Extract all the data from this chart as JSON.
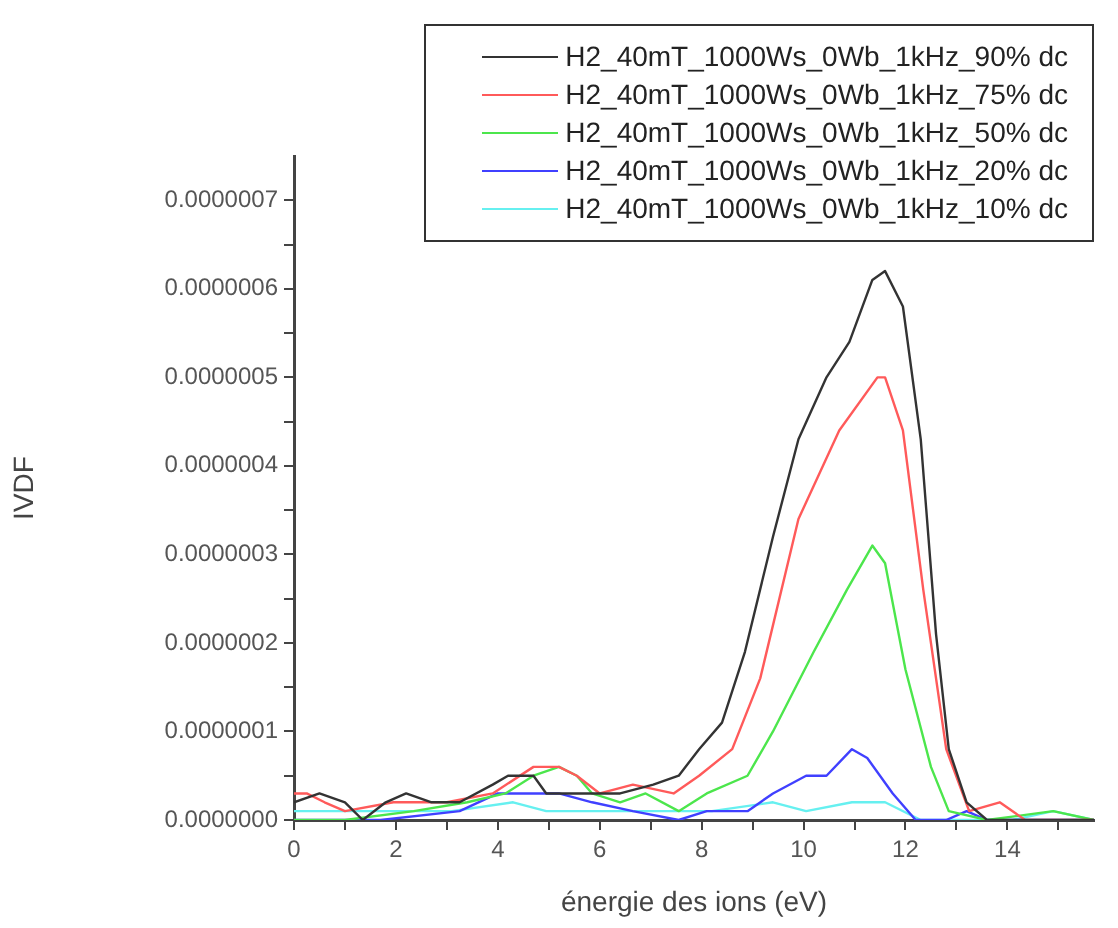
{
  "chart_data": {
    "type": "line",
    "xlabel": "énergie des ions (eV)",
    "ylabel": "IVDF",
    "xlim": [
      0,
      15.7
    ],
    "ylim": [
      0,
      7.5e-07
    ],
    "xticks": [
      0,
      {
        "value": 1,
        "label": null
      },
      2,
      {
        "value": 3,
        "label": null
      },
      4,
      {
        "value": 5,
        "label": null
      },
      6,
      {
        "value": 7,
        "label": null
      },
      8,
      {
        "value": 9,
        "label": null
      },
      10,
      {
        "value": 11,
        "label": null
      },
      12,
      {
        "value": 13,
        "label": null
      },
      14,
      {
        "value": 15,
        "label": null
      }
    ],
    "yticks": [
      {
        "value": 0,
        "label": "0.0000000"
      },
      {
        "value": 5e-08,
        "label": null
      },
      {
        "value": 1e-07,
        "label": "0.0000001"
      },
      {
        "value": 1.5e-07,
        "label": null
      },
      {
        "value": 2e-07,
        "label": "0.0000002"
      },
      {
        "value": 2.5e-07,
        "label": null
      },
      {
        "value": 3e-07,
        "label": "0.0000003"
      },
      {
        "value": 3.5e-07,
        "label": null
      },
      {
        "value": 4e-07,
        "label": "0.0000004"
      },
      {
        "value": 4.5e-07,
        "label": null
      },
      {
        "value": 5e-07,
        "label": "0.0000005"
      },
      {
        "value": 5.5e-07,
        "label": null
      },
      {
        "value": 6e-07,
        "label": "0.0000006"
      },
      {
        "value": 6.5e-07,
        "label": null
      },
      {
        "value": 7e-07,
        "label": "0.0000007"
      }
    ],
    "grid": false,
    "legend": "top right",
    "marker": "none",
    "line_style": "solid",
    "series": [
      {
        "name": "H2_40mT_1000Ws_0Wb_1kHz_90% dc",
        "color": "#333333",
        "x": [
          0,
          0.5,
          1,
          1.35,
          1.8,
          2.2,
          2.7,
          3.25,
          3.9,
          4.2,
          4.7,
          4.95,
          5.35,
          5.85,
          6.4,
          7.05,
          7.55,
          7.95,
          8.4,
          8.85,
          9.4,
          9.9,
          10.45,
          10.9,
          11.35,
          11.6,
          11.95,
          12.3,
          12.6,
          12.85,
          13.2,
          13.6,
          14.1,
          15.7
        ],
        "values": [
          2e-08,
          3e-08,
          2e-08,
          0,
          2e-08,
          3e-08,
          2e-08,
          2e-08,
          4e-08,
          5e-08,
          5e-08,
          3e-08,
          3e-08,
          3e-08,
          3e-08,
          4e-08,
          5e-08,
          8e-08,
          1.1e-07,
          1.9e-07,
          3.2e-07,
          4.3e-07,
          5e-07,
          5.4e-07,
          6.1e-07,
          6.2e-07,
          5.8e-07,
          4.3e-07,
          2.1e-07,
          8e-08,
          2e-08,
          0,
          0,
          0
        ]
      },
      {
        "name": "H2_40mT_1000Ws_0Wb_1kHz_75% dc",
        "color": "#ff5a5a",
        "x": [
          0,
          0.25,
          0.6,
          1,
          1.95,
          3,
          3.9,
          4.7,
          5.2,
          5.55,
          6,
          6.65,
          7.45,
          7.95,
          8.6,
          9.15,
          9.9,
          10.7,
          11.45,
          11.6,
          11.95,
          12.35,
          12.8,
          13.25,
          13.85,
          14.35,
          15.7
        ],
        "values": [
          3e-08,
          3e-08,
          2e-08,
          1e-08,
          2e-08,
          2e-08,
          3e-08,
          6e-08,
          6e-08,
          5e-08,
          3e-08,
          4e-08,
          3e-08,
          5e-08,
          8e-08,
          1.6e-07,
          3.4e-07,
          4.4e-07,
          5e-07,
          5e-07,
          4.4e-07,
          2.6e-07,
          8e-08,
          1e-08,
          2e-08,
          0,
          0
        ]
      },
      {
        "name": "H2_40mT_1000Ws_0Wb_1kHz_50% dc",
        "color": "#4ce64c",
        "x": [
          0,
          1,
          2.35,
          3.4,
          4.15,
          4.7,
          5.2,
          5.55,
          5.85,
          6.4,
          6.9,
          7.55,
          8.1,
          8.9,
          9.4,
          10.2,
          10.85,
          11.35,
          11.6,
          12,
          12.5,
          12.85,
          13.6,
          14.9,
          15.7
        ],
        "values": [
          0,
          0,
          1e-08,
          2e-08,
          3e-08,
          5e-08,
          6e-08,
          5e-08,
          3e-08,
          2e-08,
          3e-08,
          1e-08,
          3e-08,
          5e-08,
          1e-07,
          1.9e-07,
          2.6e-07,
          3.1e-07,
          2.9e-07,
          1.7e-07,
          6e-08,
          1e-08,
          0,
          1e-08,
          0
        ]
      },
      {
        "name": "H2_40mT_1000Ws_0Wb_1kHz_20% dc",
        "color": "#4040ff",
        "x": [
          0,
          1.7,
          3.25,
          4,
          4.55,
          5.2,
          5.85,
          6.65,
          7.55,
          8.1,
          8.9,
          9.4,
          10.05,
          10.45,
          10.95,
          11.25,
          11.75,
          12.2,
          12.8,
          13.2,
          13.6,
          15.7
        ],
        "values": [
          0,
          0,
          1e-08,
          3e-08,
          3e-08,
          3e-08,
          2e-08,
          1e-08,
          0,
          1e-08,
          1e-08,
          3e-08,
          5e-08,
          5e-08,
          8e-08,
          7e-08,
          3e-08,
          0,
          0,
          1e-08,
          0,
          0
        ]
      },
      {
        "name": "H2_40mT_1000Ws_0Wb_1kHz_10% dc",
        "color": "#66f0f0",
        "x": [
          0,
          0.75,
          1.7,
          3.1,
          4.3,
          4.95,
          6,
          7.05,
          8.2,
          9.4,
          10.05,
          10.95,
          11.6,
          12.3,
          14.1,
          14.9,
          15.7
        ],
        "values": [
          1e-08,
          1e-08,
          1e-08,
          1e-08,
          2e-08,
          1e-08,
          1e-08,
          1e-08,
          1e-08,
          2e-08,
          1e-08,
          2e-08,
          2e-08,
          0,
          0,
          1e-08,
          0
        ]
      }
    ]
  }
}
